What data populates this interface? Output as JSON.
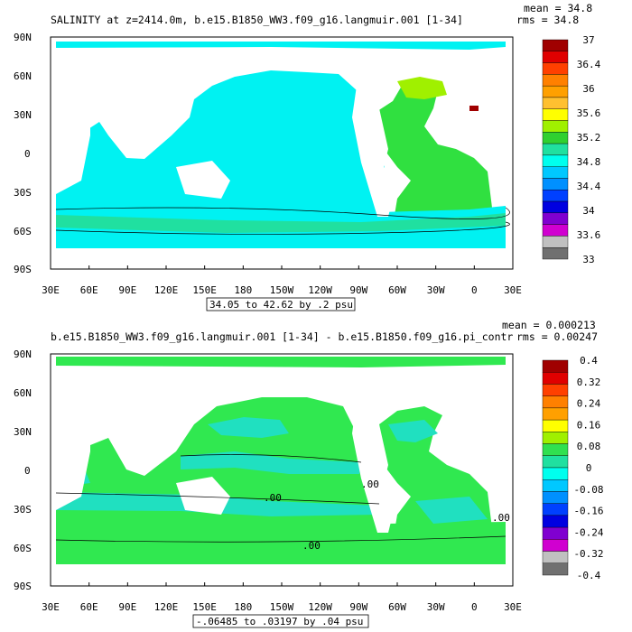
{
  "chart_data": [
    {
      "type": "heatmap",
      "title": "SALINITY at z=2414.0m, b.e15.B1850_WW3.f09_g16.langmuir.001 [1-34]",
      "stats": [
        "mean = 34.8",
        "rms = 34.8"
      ],
      "range_label": "34.05 to 42.62 by .2 psu",
      "x_ticks": [
        "30E",
        "60E",
        "90E",
        "120E",
        "150E",
        "180",
        "150W",
        "120W",
        "90W",
        "60W",
        "30W",
        "0",
        "30E"
      ],
      "y_ticks": [
        "90N",
        "60N",
        "30N",
        "0",
        "30S",
        "60S",
        "90S"
      ],
      "colorbar": {
        "labels": [
          "37",
          "36.4",
          "36",
          "35.6",
          "35.2",
          "34.8",
          "34.4",
          "34",
          "33.6",
          "33"
        ],
        "colors": [
          "#a00000",
          "#e00000",
          "#ff4000",
          "#ff8000",
          "#ffa000",
          "#ffc030",
          "#ffff00",
          "#a0f000",
          "#30d030",
          "#20e0a0",
          "#00ffee",
          "#00c8ff",
          "#0090ff",
          "#0040ff",
          "#0000e0",
          "#8000d0",
          "#d000d0",
          "#c0c0c0",
          "#707070"
        ]
      },
      "ocean_color": "#00f2f2"
    },
    {
      "type": "heatmap",
      "title": "b.e15.B1850_WW3.f09_g16.langmuir.001 [1-34] - b.e15.B1850.f09_g16.pi_contr",
      "stats": [
        "mean = 0.000213",
        "rms = 0.00247"
      ],
      "range_label": "-.06485 to .03197 by .04 psu",
      "x_ticks": [
        "30E",
        "60E",
        "90E",
        "120E",
        "150E",
        "180",
        "150W",
        "120W",
        "90W",
        "60W",
        "30W",
        "0",
        "30E"
      ],
      "y_ticks": [
        "90N",
        "60N",
        "30N",
        "0",
        "30S",
        "60S",
        "90S"
      ],
      "colorbar": {
        "labels": [
          "0.4",
          "0.32",
          "0.24",
          "0.16",
          "0.08",
          "0",
          "-0.08",
          "-0.16",
          "-0.24",
          "-0.32",
          "-0.4"
        ],
        "colors": [
          "#a00000",
          "#e00000",
          "#ff4000",
          "#ff8000",
          "#ffa000",
          "#ffff00",
          "#a0f000",
          "#30e050",
          "#20e0a0",
          "#00ffee",
          "#00c8ff",
          "#0090ff",
          "#0040ff",
          "#0000e0",
          "#8000d0",
          "#d000d0",
          "#c0c0c0",
          "#707070"
        ]
      },
      "contour_labels": [
        ".00",
        ".00",
        ".00",
        ".00"
      ],
      "ocean_color": "#30e850"
    }
  ]
}
